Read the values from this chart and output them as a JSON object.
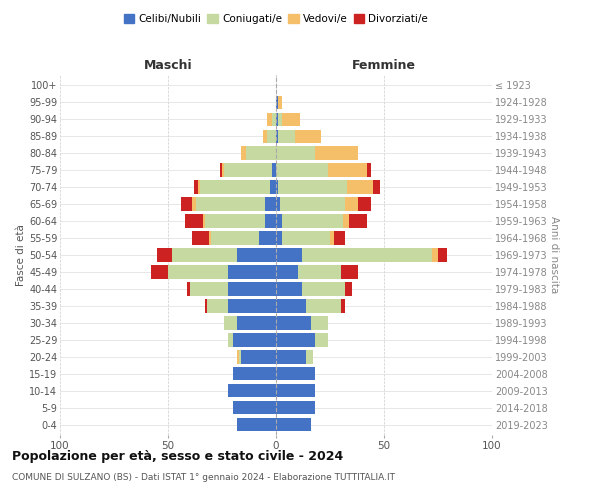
{
  "age_groups": [
    "0-4",
    "5-9",
    "10-14",
    "15-19",
    "20-24",
    "25-29",
    "30-34",
    "35-39",
    "40-44",
    "45-49",
    "50-54",
    "55-59",
    "60-64",
    "65-69",
    "70-74",
    "75-79",
    "80-84",
    "85-89",
    "90-94",
    "95-99",
    "100+"
  ],
  "birth_years": [
    "2019-2023",
    "2014-2018",
    "2009-2013",
    "2004-2008",
    "1999-2003",
    "1994-1998",
    "1989-1993",
    "1984-1988",
    "1979-1983",
    "1974-1978",
    "1969-1973",
    "1964-1968",
    "1959-1963",
    "1954-1958",
    "1949-1953",
    "1944-1948",
    "1939-1943",
    "1934-1938",
    "1929-1933",
    "1924-1928",
    "≤ 1923"
  ],
  "maschi": {
    "celibi": [
      18,
      20,
      22,
      20,
      16,
      20,
      18,
      22,
      22,
      22,
      18,
      8,
      5,
      5,
      3,
      2,
      0,
      0,
      0,
      0,
      0
    ],
    "coniugati": [
      0,
      0,
      0,
      0,
      1,
      2,
      6,
      10,
      18,
      28,
      30,
      22,
      28,
      32,
      32,
      22,
      14,
      4,
      2,
      0,
      0
    ],
    "vedovi": [
      0,
      0,
      0,
      0,
      1,
      0,
      0,
      0,
      0,
      0,
      0,
      1,
      1,
      2,
      1,
      1,
      2,
      2,
      2,
      0,
      0
    ],
    "divorziati": [
      0,
      0,
      0,
      0,
      0,
      0,
      0,
      1,
      1,
      8,
      7,
      8,
      8,
      5,
      2,
      1,
      0,
      0,
      0,
      0,
      0
    ]
  },
  "femmine": {
    "nubili": [
      16,
      18,
      18,
      18,
      14,
      18,
      16,
      14,
      12,
      10,
      12,
      3,
      3,
      2,
      1,
      0,
      0,
      1,
      1,
      1,
      0
    ],
    "coniugate": [
      0,
      0,
      0,
      0,
      3,
      6,
      8,
      16,
      20,
      20,
      60,
      22,
      28,
      30,
      32,
      24,
      18,
      8,
      2,
      0,
      0
    ],
    "vedove": [
      0,
      0,
      0,
      0,
      0,
      0,
      0,
      0,
      0,
      0,
      3,
      2,
      3,
      6,
      12,
      18,
      20,
      12,
      8,
      2,
      0
    ],
    "divorziate": [
      0,
      0,
      0,
      0,
      0,
      0,
      0,
      2,
      3,
      8,
      4,
      5,
      8,
      6,
      3,
      2,
      0,
      0,
      0,
      0,
      0
    ]
  },
  "color_celibi": "#4472c4",
  "color_coniugati": "#c5d9a0",
  "color_vedovi": "#f5bf6a",
  "color_divorziati": "#cc2222",
  "title": "Popolazione per età, sesso e stato civile - 2024",
  "subtitle": "COMUNE DI SULZANO (BS) - Dati ISTAT 1° gennaio 2024 - Elaborazione TUTTITALIA.IT",
  "xlabel_left": "Maschi",
  "xlabel_right": "Femmine",
  "ylabel_left": "Fasce di età",
  "ylabel_right": "Anni di nascita",
  "xlim": 100
}
